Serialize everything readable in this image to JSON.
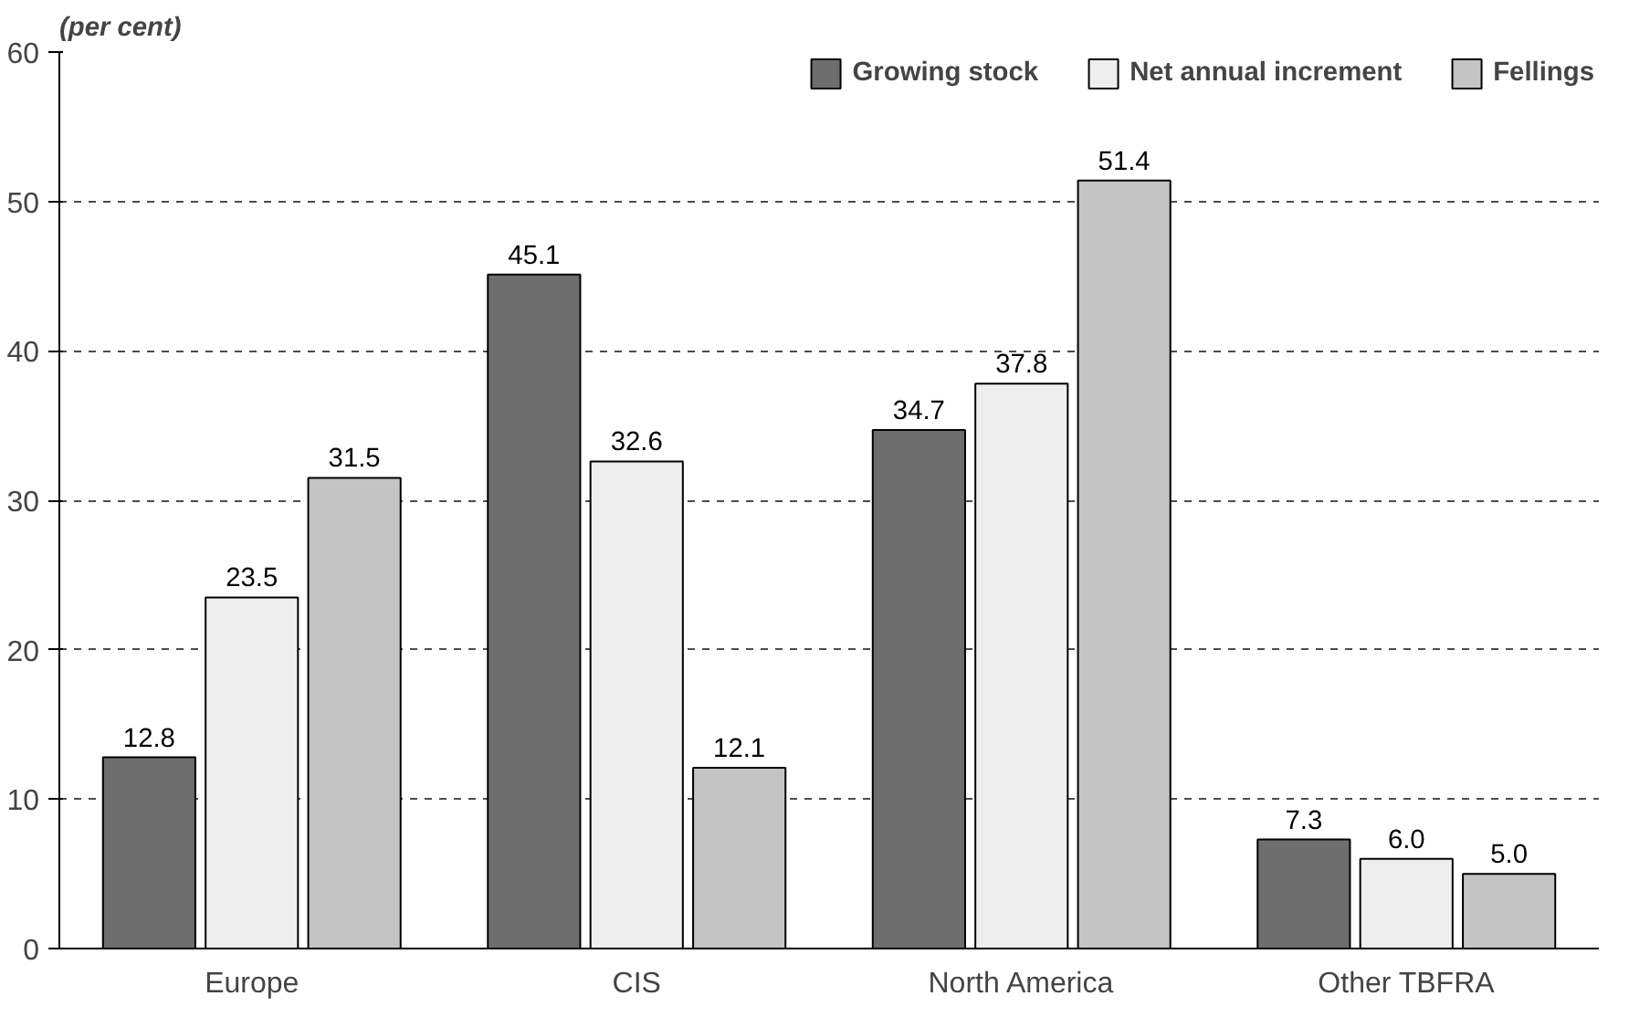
{
  "chart_data": {
    "type": "bar",
    "ylabel": "(per cent)",
    "categories": [
      "Europe",
      "CIS",
      "North America",
      "Other TBFRA"
    ],
    "series": [
      {
        "name": "Growing stock",
        "color": "#6e6e6e",
        "values": [
          12.8,
          45.1,
          34.7,
          7.3
        ],
        "value_labels": [
          "12.8",
          "45.1",
          "34.7",
          "7.3"
        ]
      },
      {
        "name": "Net annual increment",
        "color": "#eeeeee",
        "values": [
          23.5,
          32.6,
          37.8,
          6
        ],
        "value_labels": [
          "23.5",
          "32.6",
          "37.8",
          "6.0"
        ]
      },
      {
        "name": "Fellings",
        "color": "#c4c4c4",
        "values": [
          31.5,
          12.1,
          51.4,
          5
        ],
        "value_labels": [
          "31.5",
          "12.1",
          "51.4",
          "5.0"
        ]
      }
    ],
    "ylim": [
      0,
      60
    ],
    "yticks": [
      0,
      10,
      20,
      30,
      40,
      50,
      60
    ],
    "grid": "y",
    "legend": "top right"
  }
}
